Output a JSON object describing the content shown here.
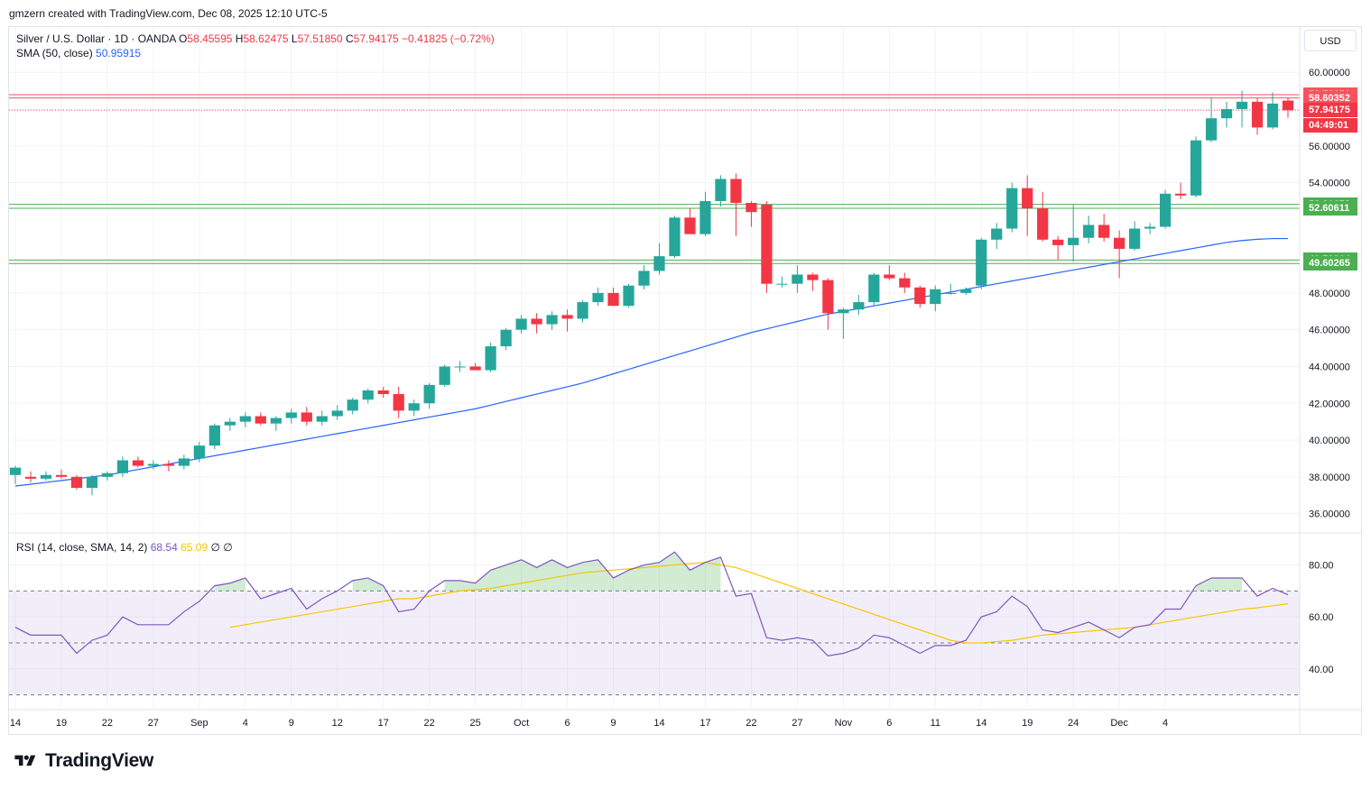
{
  "header": {
    "attribution": "gmzern created with TradingView.com, Dec 08, 2025 12:10 UTC-5"
  },
  "legend": {
    "symbol": "Silver / U.S. Dollar · 1D · OANDA",
    "open_label": "O",
    "open": "58.45595",
    "high_label": "H",
    "high": "58.62475",
    "low_label": "L",
    "low": "57.51850",
    "close_label": "C",
    "close": "57.94175",
    "change": "−0.41825 (−0.72%)",
    "sma_label": "SMA (50, close)",
    "sma_value": "50.95915",
    "rsi_label": "RSI (14, close, SMA, 14, 2)",
    "rsi_value": "68.54",
    "rsi_sma_value": "65.09",
    "rsi_extra": "∅ ∅"
  },
  "currency": "USD",
  "price_tags": [
    {
      "text": "58.78151",
      "color": "#f7525f",
      "price": 58.78151
    },
    {
      "text": "58.60352",
      "color": "#f7525f",
      "price": 58.60352
    },
    {
      "text": "57.94175",
      "color": "#f23645",
      "price": 57.94175
    },
    {
      "text": "04:49:01",
      "color": "#f23645",
      "price": 57.12
    },
    {
      "text": "52.81678",
      "color": "#4caf50",
      "price": 52.81678
    },
    {
      "text": "52.60611",
      "color": "#4caf50",
      "price": 52.60611
    },
    {
      "text": "49.79364",
      "color": "#4caf50",
      "price": 49.79364
    },
    {
      "text": "49.60265",
      "color": "#4caf50",
      "price": 49.60265
    }
  ],
  "brand": {
    "name": "TradingView"
  },
  "colors": {
    "up": "#26a69a",
    "down": "#f23645",
    "sma": "#2962ff",
    "rsi": "#7e57c2",
    "rsi_sma": "#f7c600",
    "resistance": "#f7525f",
    "support": "#4caf50"
  },
  "chart_data": [
    {
      "type": "candlestick",
      "title": "Silver / U.S. Dollar · 1D · OANDA",
      "ylim": [
        35,
        60.5
      ],
      "y_ticks": [
        60,
        58,
        56,
        54,
        52,
        50,
        48,
        46,
        44,
        42,
        40,
        38,
        36
      ],
      "y_tick_labels": [
        "60.00000",
        "56.00000",
        "54.00000",
        "48.00000",
        "46.00000",
        "44.00000",
        "42.00000",
        "40.00000",
        "38.00000",
        "36.00000"
      ],
      "y_tick_values": [
        60,
        56,
        54,
        48,
        46,
        44,
        42,
        40,
        38,
        36
      ],
      "x_tick_labels": [
        "14",
        "19",
        "22",
        "27",
        "Sep",
        "4",
        "9",
        "12",
        "17",
        "22",
        "25",
        "Oct",
        "6",
        "9",
        "14",
        "17",
        "22",
        "27",
        "Nov",
        "6",
        "11",
        "14",
        "19",
        "24",
        "Dec",
        "4"
      ],
      "x_tick_index": [
        0,
        3,
        6,
        9,
        12,
        15,
        18,
        21,
        24,
        27,
        30,
        33,
        36,
        39,
        42,
        45,
        48,
        51,
        54,
        57,
        60,
        63,
        66,
        69,
        72,
        75
      ],
      "hlines": [
        {
          "value": 58.78151,
          "color": "#f7525f"
        },
        {
          "value": 58.60352,
          "color": "#f7525f"
        },
        {
          "value": 57.94175,
          "color": "#f23645",
          "dotted": true
        },
        {
          "value": 52.81678,
          "color": "#4caf50"
        },
        {
          "value": 52.60611,
          "color": "#4caf50"
        },
        {
          "value": 49.79364,
          "color": "#4caf50"
        },
        {
          "value": 49.60265,
          "color": "#4caf50"
        }
      ],
      "candles": [
        [
          38.1,
          38.6,
          37.6,
          38.5
        ],
        [
          38.0,
          38.3,
          37.7,
          37.9
        ],
        [
          37.9,
          38.3,
          37.8,
          38.1
        ],
        [
          38.1,
          38.4,
          37.9,
          38.0
        ],
        [
          38.0,
          38.1,
          37.3,
          37.4
        ],
        [
          37.4,
          38.1,
          37.0,
          38.0
        ],
        [
          38.0,
          38.3,
          37.8,
          38.2
        ],
        [
          38.2,
          39.1,
          38.0,
          38.9
        ],
        [
          38.9,
          39.1,
          38.5,
          38.6
        ],
        [
          38.6,
          38.9,
          38.4,
          38.7
        ],
        [
          38.7,
          38.9,
          38.3,
          38.6
        ],
        [
          38.6,
          39.2,
          38.4,
          39.0
        ],
        [
          39.0,
          39.9,
          38.8,
          39.7
        ],
        [
          39.7,
          40.9,
          39.5,
          40.8
        ],
        [
          40.8,
          41.2,
          40.5,
          41.0
        ],
        [
          41.0,
          41.5,
          40.7,
          41.3
        ],
        [
          41.3,
          41.5,
          40.8,
          40.9
        ],
        [
          40.9,
          41.3,
          40.5,
          41.2
        ],
        [
          41.2,
          41.7,
          40.9,
          41.5
        ],
        [
          41.5,
          41.8,
          40.8,
          41.0
        ],
        [
          41.0,
          41.6,
          40.8,
          41.3
        ],
        [
          41.3,
          41.9,
          41.1,
          41.6
        ],
        [
          41.6,
          42.3,
          41.4,
          42.2
        ],
        [
          42.2,
          42.8,
          42.0,
          42.7
        ],
        [
          42.7,
          42.9,
          42.3,
          42.5
        ],
        [
          42.5,
          42.9,
          41.2,
          41.6
        ],
        [
          41.6,
          42.2,
          41.3,
          42.0
        ],
        [
          42.0,
          43.1,
          41.7,
          43.0
        ],
        [
          43.0,
          44.1,
          42.9,
          44.0
        ],
        [
          44.0,
          44.3,
          43.7,
          44.0
        ],
        [
          44.0,
          44.2,
          43.8,
          43.8
        ],
        [
          43.8,
          45.3,
          43.7,
          45.1
        ],
        [
          45.1,
          46.1,
          44.9,
          46.0
        ],
        [
          46.0,
          46.8,
          45.8,
          46.6
        ],
        [
          46.6,
          46.9,
          45.8,
          46.3
        ],
        [
          46.3,
          47.0,
          46.0,
          46.8
        ],
        [
          46.8,
          47.1,
          45.9,
          46.6
        ],
        [
          46.6,
          47.6,
          46.4,
          47.5
        ],
        [
          47.5,
          48.3,
          47.3,
          48.0
        ],
        [
          48.0,
          48.3,
          47.3,
          47.3
        ],
        [
          47.3,
          48.5,
          47.2,
          48.4
        ],
        [
          48.4,
          49.5,
          48.2,
          49.2
        ],
        [
          49.2,
          50.7,
          49.0,
          50.0
        ],
        [
          50.0,
          52.2,
          49.9,
          52.1
        ],
        [
          52.1,
          52.6,
          51.3,
          51.2
        ],
        [
          51.2,
          53.5,
          51.1,
          53.0
        ],
        [
          53.0,
          54.4,
          52.7,
          54.2
        ],
        [
          54.2,
          54.5,
          51.1,
          52.9
        ],
        [
          52.9,
          53.0,
          51.6,
          52.4
        ],
        [
          52.8,
          53.0,
          48.0,
          48.5
        ],
        [
          48.5,
          48.9,
          48.3,
          48.5
        ],
        [
          48.5,
          49.5,
          48.0,
          49.0
        ],
        [
          49.0,
          49.1,
          48.1,
          48.7
        ],
        [
          48.7,
          48.8,
          46.0,
          46.9
        ],
        [
          46.9,
          47.2,
          45.5,
          47.1
        ],
        [
          47.1,
          47.9,
          46.8,
          47.5
        ],
        [
          47.5,
          49.1,
          47.3,
          49.0
        ],
        [
          49.0,
          49.5,
          48.7,
          48.8
        ],
        [
          48.8,
          49.1,
          48.0,
          48.3
        ],
        [
          48.3,
          48.4,
          47.2,
          47.4
        ],
        [
          47.4,
          48.4,
          47.0,
          48.2
        ],
        [
          48.0,
          48.5,
          47.9,
          48.0
        ],
        [
          48.0,
          48.3,
          47.9,
          48.2
        ],
        [
          48.4,
          51.0,
          48.2,
          50.9
        ],
        [
          50.9,
          51.8,
          50.4,
          51.5
        ],
        [
          51.5,
          54.0,
          51.3,
          53.7
        ],
        [
          53.7,
          54.4,
          51.1,
          52.6
        ],
        [
          52.6,
          53.5,
          50.8,
          50.9
        ],
        [
          50.9,
          51.1,
          49.8,
          50.6
        ],
        [
          50.6,
          52.8,
          49.7,
          51.0
        ],
        [
          51.0,
          52.2,
          50.7,
          51.7
        ],
        [
          51.7,
          52.3,
          50.8,
          51.0
        ],
        [
          51.0,
          51.4,
          48.8,
          50.4
        ],
        [
          50.4,
          51.9,
          50.3,
          51.5
        ],
        [
          51.5,
          51.8,
          51.2,
          51.6
        ],
        [
          51.6,
          53.6,
          51.5,
          53.4
        ],
        [
          53.4,
          54.0,
          53.1,
          53.3
        ],
        [
          53.3,
          56.5,
          53.2,
          56.3
        ],
        [
          56.3,
          58.6,
          56.2,
          57.5
        ],
        [
          57.5,
          58.4,
          57.0,
          58.0
        ],
        [
          58.0,
          59.0,
          57.0,
          58.4
        ],
        [
          58.4,
          58.6,
          56.6,
          57.0
        ],
        [
          57.0,
          58.9,
          56.9,
          58.3
        ],
        [
          58.46,
          58.62,
          57.52,
          57.94
        ]
      ],
      "sma": [
        37.5,
        37.6,
        37.7,
        37.8,
        37.9,
        38.0,
        38.1,
        38.25,
        38.4,
        38.55,
        38.7,
        38.85,
        39.0,
        39.15,
        39.3,
        39.45,
        39.6,
        39.75,
        39.9,
        40.05,
        40.2,
        40.35,
        40.5,
        40.65,
        40.8,
        40.95,
        41.1,
        41.25,
        41.4,
        41.55,
        41.7,
        41.9,
        42.1,
        42.3,
        42.5,
        42.7,
        42.9,
        43.1,
        43.35,
        43.6,
        43.85,
        44.1,
        44.35,
        44.6,
        44.85,
        45.1,
        45.35,
        45.6,
        45.85,
        46.05,
        46.25,
        46.45,
        46.65,
        46.85,
        47.0,
        47.15,
        47.3,
        47.45,
        47.6,
        47.75,
        47.9,
        48.05,
        48.2,
        48.35,
        48.5,
        48.65,
        48.8,
        48.95,
        49.1,
        49.25,
        49.4,
        49.55,
        49.7,
        49.85,
        50.0,
        50.15,
        50.3,
        50.45,
        50.6,
        50.75,
        50.85,
        50.92,
        50.96,
        50.96
      ],
      "sma_start_index": 0
    },
    {
      "type": "line",
      "title": "RSI (14, close, SMA, 14, 2)",
      "ylim": [
        25,
        92
      ],
      "y_tick_values": [
        80,
        60,
        40
      ],
      "y_tick_labels": [
        "80.00",
        "60.00",
        "40.00"
      ],
      "bands": [
        70,
        50,
        30
      ],
      "series": [
        {
          "name": "RSI",
          "values": [
            56,
            53,
            53,
            53,
            46,
            51,
            53,
            60,
            57,
            57,
            57,
            62,
            66,
            72,
            73,
            75,
            67,
            69,
            71,
            63,
            67,
            70,
            74,
            75,
            72,
            62,
            63,
            70,
            74,
            74,
            73,
            78,
            80,
            82,
            79,
            82,
            79,
            81,
            82,
            75,
            78,
            80,
            81,
            85,
            78,
            81,
            83,
            68,
            69,
            52,
            51,
            52,
            51,
            45,
            46,
            48,
            53,
            52,
            49,
            46,
            49,
            49,
            51,
            60,
            62,
            68,
            64,
            55,
            54,
            56,
            58,
            55,
            52,
            56,
            57,
            63,
            63,
            72,
            75,
            75,
            75,
            68,
            71,
            68.54
          ]
        },
        {
          "name": "RSI SMA",
          "values": [
            null,
            null,
            null,
            null,
            null,
            null,
            null,
            null,
            null,
            null,
            null,
            null,
            null,
            null,
            56,
            57,
            58,
            59,
            60,
            61,
            62,
            63,
            64,
            65,
            66,
            67,
            67,
            68,
            69,
            70,
            70.5,
            71,
            72,
            73,
            74,
            75,
            76,
            77,
            77.5,
            78,
            78.5,
            79,
            79.5,
            80,
            80.5,
            81,
            80,
            79,
            77,
            75,
            73,
            71,
            69,
            67,
            65,
            63,
            61,
            59,
            57,
            55,
            53,
            51,
            50,
            50,
            50.5,
            51,
            52,
            53,
            53.5,
            54,
            54.5,
            55,
            55.5,
            56,
            57,
            58,
            59,
            60,
            61,
            62,
            63,
            63.5,
            64.3,
            65.09
          ]
        }
      ]
    }
  ]
}
